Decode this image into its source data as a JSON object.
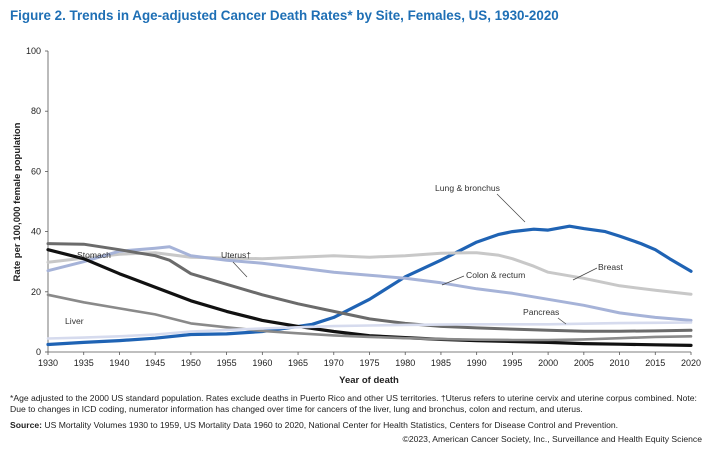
{
  "figure_title": "Figure 2. Trends in Age-adjusted Cancer Death Rates* by Site, Females, US, 1930-2020",
  "footnote": "*Age adjusted to the 2000 US standard population. Rates exclude deaths in Puerto Rico and other US territories. †Uterus refers to uterine cervix and uterine corpus combined. Note: Due to changes in ICD coding, numerator information has changed over time for cancers of the liver, lung and bronchus, colon and rectum, and uterus.",
  "source_label": "Source:",
  "source_text": "US Mortality Volumes 1930 to 1959, US Mortality Data 1960 to 2020, National Center for Health Statistics, Centers for Disease Control and Prevention.",
  "copyright": "©2023, American Cancer Society, Inc., Surveillance and Health Equity Science",
  "chart_data": {
    "type": "line",
    "title": "Figure 2. Trends in Age-adjusted Cancer Death Rates* by Site, Females, US, 1930-2020",
    "xlabel": "Year of death",
    "ylabel": "Rate per 100,000 female population",
    "xlim": [
      1930,
      2020
    ],
    "ylim": [
      0,
      100
    ],
    "xticks": [
      1930,
      1935,
      1940,
      1945,
      1950,
      1955,
      1960,
      1965,
      1970,
      1975,
      1980,
      1985,
      1990,
      1995,
      2000,
      2005,
      2010,
      2015,
      2020
    ],
    "yticks": [
      0,
      20,
      40,
      60,
      80,
      100
    ],
    "grid": false,
    "legend": "inline labels",
    "series": [
      {
        "name": "Lung & bronchus",
        "color": "#1f63b4",
        "width": 3.2,
        "x": [
          1930,
          1935,
          1940,
          1945,
          1950,
          1955,
          1960,
          1965,
          1967,
          1970,
          1975,
          1980,
          1985,
          1990,
          1993,
          1995,
          1998,
          2000,
          2003,
          2005,
          2008,
          2010,
          2013,
          2015,
          2017,
          2020
        ],
        "y": [
          2.5,
          3.2,
          3.8,
          4.6,
          5.8,
          6.0,
          6.8,
          8.5,
          9.2,
          11.5,
          17.5,
          25.0,
          30.5,
          36.5,
          39.0,
          40.0,
          40.8,
          40.5,
          41.8,
          41.0,
          40.0,
          38.5,
          36.0,
          34.0,
          31.0,
          26.8
        ]
      },
      {
        "name": "Breast",
        "color": "#c8c8c8",
        "width": 3.0,
        "x": [
          1930,
          1935,
          1940,
          1945,
          1950,
          1955,
          1960,
          1965,
          1970,
          1975,
          1980,
          1985,
          1989,
          1990,
          1993,
          1995,
          1998,
          2000,
          2005,
          2010,
          2015,
          2020
        ],
        "y": [
          29.8,
          31.2,
          32.5,
          33.0,
          31.5,
          31.2,
          31.0,
          31.5,
          32.0,
          31.5,
          32.0,
          32.8,
          33.0,
          33.0,
          32.2,
          31.0,
          28.5,
          26.5,
          24.5,
          22.0,
          20.5,
          19.2
        ]
      },
      {
        "name": "Colon & rectum",
        "color": "#a6b3d8",
        "width": 3.0,
        "x": [
          1930,
          1935,
          1940,
          1945,
          1947,
          1950,
          1955,
          1960,
          1965,
          1970,
          1975,
          1980,
          1985,
          1990,
          1995,
          2000,
          2005,
          2010,
          2015,
          2020
        ],
        "y": [
          27.0,
          30.0,
          33.5,
          34.5,
          35.0,
          32.0,
          30.5,
          29.5,
          28.0,
          26.5,
          25.5,
          24.5,
          23.0,
          21.0,
          19.5,
          17.5,
          15.5,
          13.0,
          11.5,
          10.5
        ]
      },
      {
        "name": "Uterus†",
        "color": "#6b6b6b",
        "width": 3.0,
        "x": [
          1930,
          1935,
          1940,
          1945,
          1947,
          1950,
          1955,
          1960,
          1965,
          1970,
          1975,
          1980,
          1985,
          1990,
          1995,
          2000,
          2005,
          2010,
          2015,
          2020
        ],
        "y": [
          36.0,
          35.8,
          34.0,
          32.0,
          30.5,
          26.0,
          22.5,
          19.0,
          16.0,
          13.5,
          11.0,
          9.5,
          8.5,
          8.0,
          7.6,
          7.2,
          6.9,
          6.9,
          7.0,
          7.2
        ]
      },
      {
        "name": "Stomach",
        "color": "#111111",
        "width": 3.2,
        "x": [
          1930,
          1935,
          1940,
          1945,
          1950,
          1955,
          1960,
          1965,
          1970,
          1975,
          1980,
          1985,
          1990,
          1995,
          2000,
          2005,
          2010,
          2015,
          2020
        ],
        "y": [
          34.0,
          31.0,
          26.0,
          21.5,
          17.0,
          13.5,
          10.5,
          8.5,
          6.8,
          5.4,
          4.8,
          4.2,
          3.8,
          3.5,
          3.2,
          2.8,
          2.6,
          2.4,
          2.2
        ]
      },
      {
        "name": "Liver",
        "color": "#8a8a8a",
        "width": 2.6,
        "x": [
          1930,
          1935,
          1940,
          1945,
          1950,
          1955,
          1960,
          1965,
          1970,
          1975,
          1980,
          1985,
          1990,
          1995,
          2000,
          2005,
          2010,
          2015,
          2020
        ],
        "y": [
          19.0,
          16.5,
          14.5,
          12.5,
          9.5,
          8.2,
          7.0,
          6.2,
          5.5,
          5.0,
          4.6,
          4.3,
          4.1,
          4.0,
          4.0,
          4.2,
          4.6,
          5.0,
          5.2
        ]
      },
      {
        "name": "Pancreas",
        "color": "#d6dbee",
        "width": 2.6,
        "x": [
          1930,
          1935,
          1940,
          1945,
          1950,
          1955,
          1960,
          1965,
          1970,
          1975,
          1980,
          1985,
          1990,
          1995,
          2000,
          2005,
          2010,
          2015,
          2020
        ],
        "y": [
          4.5,
          4.8,
          5.2,
          5.8,
          6.8,
          7.3,
          7.8,
          8.2,
          8.6,
          8.8,
          9.0,
          9.1,
          9.2,
          9.2,
          9.2,
          9.4,
          9.6,
          9.7,
          9.8
        ]
      }
    ],
    "annotations": [
      {
        "text": "Lung & bronchus",
        "series": "Lung & bronchus"
      },
      {
        "text": "Breast",
        "series": "Breast"
      },
      {
        "text": "Colon & rectum",
        "series": "Colon & rectum"
      },
      {
        "text": "Pancreas",
        "series": "Pancreas"
      },
      {
        "text": "Stomach",
        "series": "Stomach"
      },
      {
        "text": "Uterus†",
        "series": "Uterus†"
      },
      {
        "text": "Liver",
        "series": "Liver"
      }
    ]
  }
}
